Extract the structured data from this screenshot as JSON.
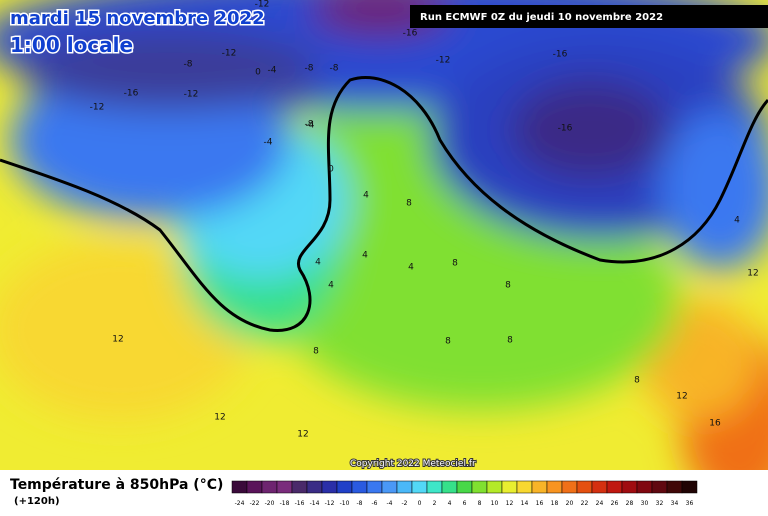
{
  "header": {
    "date": "mardi 15 novembre 2022",
    "time": "1:00 locale",
    "run": "Run ECMWF 0Z du jeudi 10 novembre 2022"
  },
  "copyright": "Copyright 2022 Meteociel.fr",
  "legend": {
    "title": "Température à 850hPa (°C)",
    "lead": "(+120h)",
    "labels": [
      -24,
      -22,
      -20,
      -18,
      -16,
      -14,
      -12,
      -10,
      -8,
      -6,
      -4,
      -2,
      0,
      2,
      4,
      6,
      8,
      10,
      12,
      14,
      16,
      18,
      20,
      22,
      24,
      26,
      28,
      30,
      32,
      34,
      36
    ],
    "colors": [
      "#3a0a3a",
      "#5a145a",
      "#6e2470",
      "#7a2c7c",
      "#4a2a6a",
      "#3a2c86",
      "#2a2fa8",
      "#2040c8",
      "#2a5ae0",
      "#3a78f0",
      "#4a98f6",
      "#4ab8f8",
      "#52d8f6",
      "#3ee6c8",
      "#36e08a",
      "#48d848",
      "#80e030",
      "#b4ea28",
      "#e8ee30",
      "#f8d830",
      "#f8b428",
      "#f89420",
      "#f07018",
      "#e45010",
      "#d43010",
      "#c01810",
      "#a00c10",
      "#800810",
      "#600810",
      "#400808",
      "#200404"
    ]
  },
  "map_labels": [
    "-12",
    "-16",
    "-12",
    "-16",
    "-16",
    "-12",
    "-16",
    "-12",
    "-12",
    "-8",
    "-8",
    "-4",
    "0",
    "-8",
    "-4",
    "-4",
    "-8",
    "0",
    "4",
    "4",
    "8",
    "12",
    "12",
    "12",
    "4",
    "8",
    "4",
    "8",
    "8",
    "8",
    "8",
    "12",
    "16",
    "12",
    "4",
    "8",
    "4"
  ]
}
